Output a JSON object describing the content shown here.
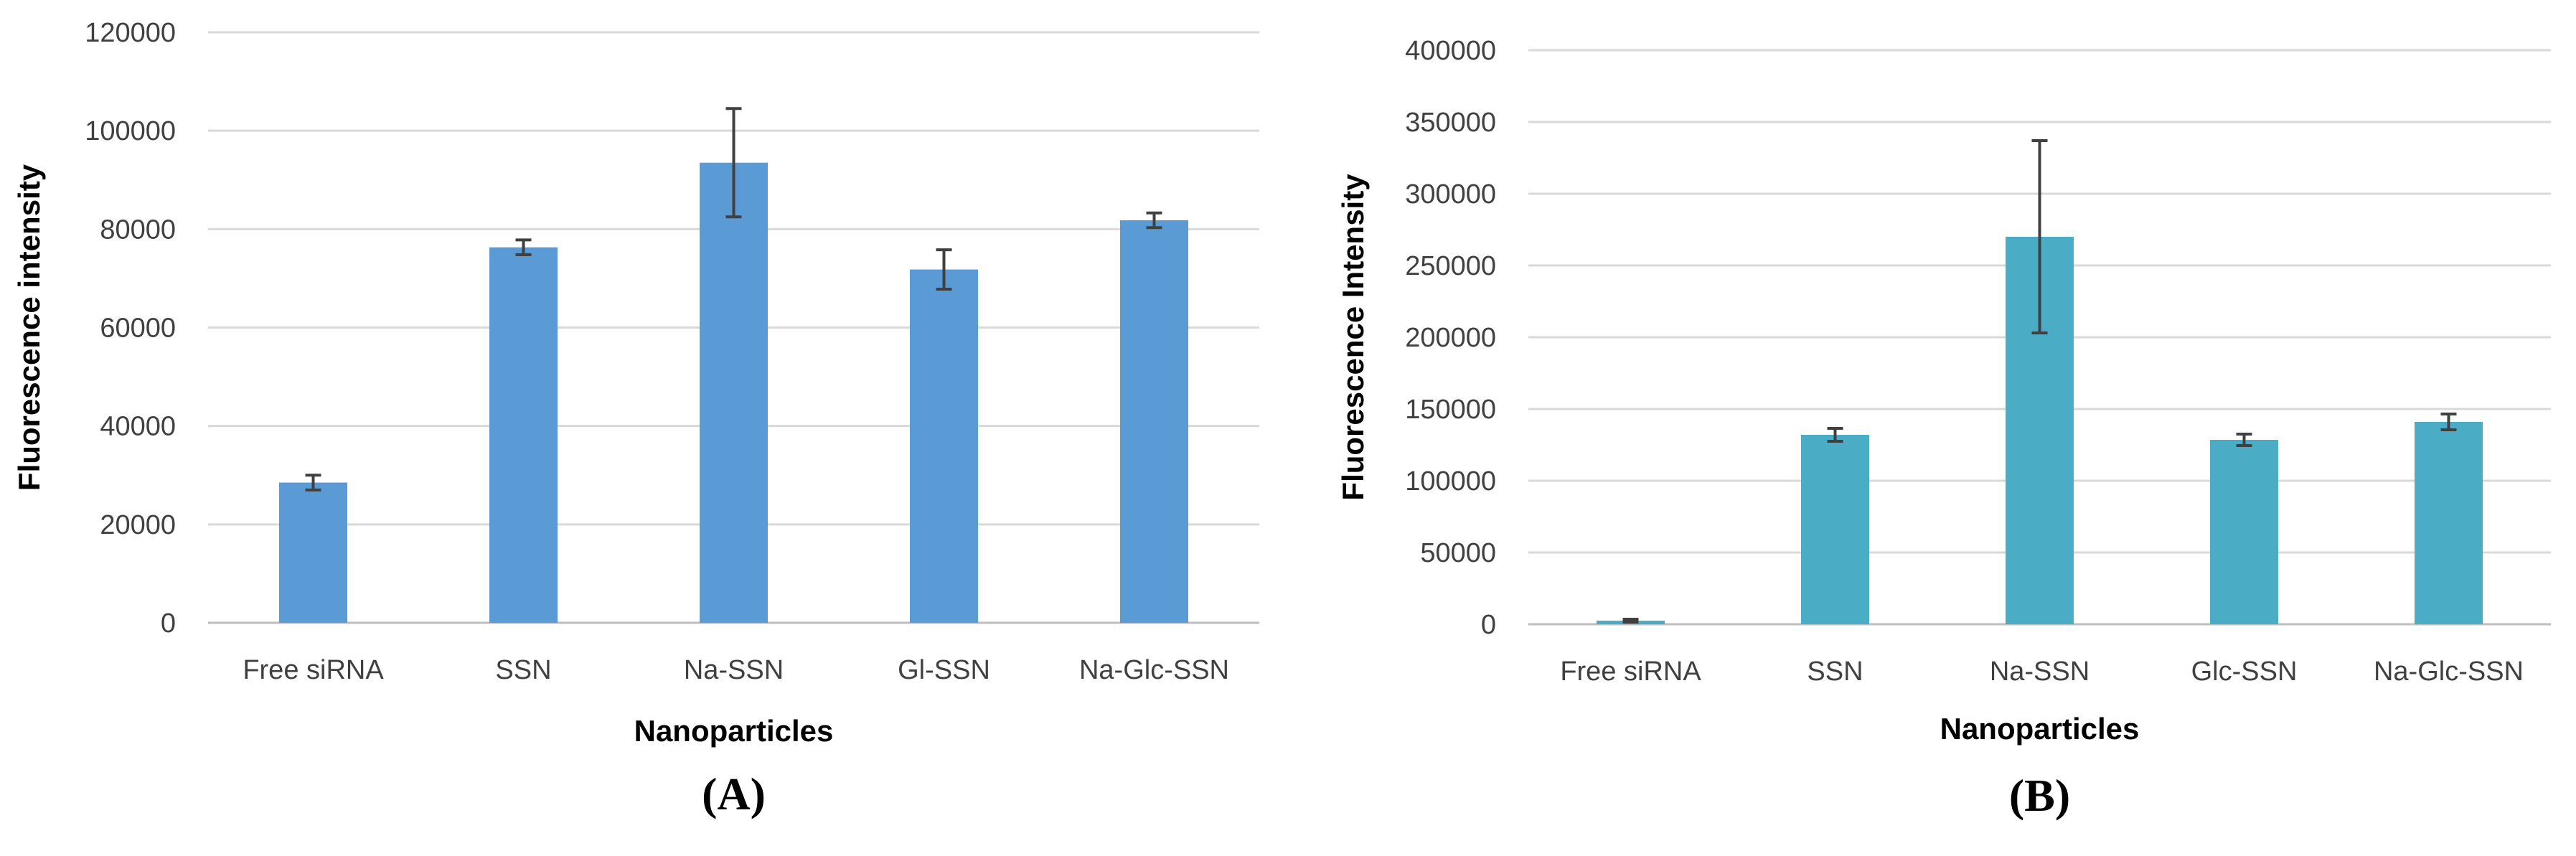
{
  "chart_data": [
    {
      "panel": "(A)",
      "type": "bar",
      "xlabel": "Nanoparticles",
      "ylabel": "Fluorescence intensity",
      "ylim": [
        0,
        120000
      ],
      "yticks": [
        "0",
        "20000",
        "40000",
        "60000",
        "80000",
        "100000",
        "120000"
      ],
      "categories": [
        "Free siRNA",
        "SSN",
        "Na-SSN",
        "Gl-SSN",
        "Na-Glc-SSN"
      ],
      "values": [
        28500,
        76300,
        93500,
        71800,
        81800
      ],
      "errors": [
        1500,
        1500,
        11000,
        4000,
        1500
      ],
      "color": "#5b9bd5",
      "grid": true,
      "legend": "none"
    },
    {
      "panel": "(B)",
      "type": "bar",
      "xlabel": "Nanoparticles",
      "ylabel": "Fluorescence Intensity",
      "ylim": [
        0,
        400000
      ],
      "yticks": [
        "0",
        "50000",
        "100000",
        "150000",
        "200000",
        "250000",
        "300000",
        "350000",
        "400000"
      ],
      "categories": [
        "Free siRNA",
        "SSN",
        "Na-SSN",
        "Glc-SSN",
        "Na-Glc-SSN"
      ],
      "values": [
        2500,
        132000,
        270000,
        128500,
        141000
      ],
      "errors": [
        1000,
        4500,
        67000,
        4000,
        5500
      ],
      "color": "#4bacc6",
      "grid": true,
      "legend": "none"
    }
  ]
}
